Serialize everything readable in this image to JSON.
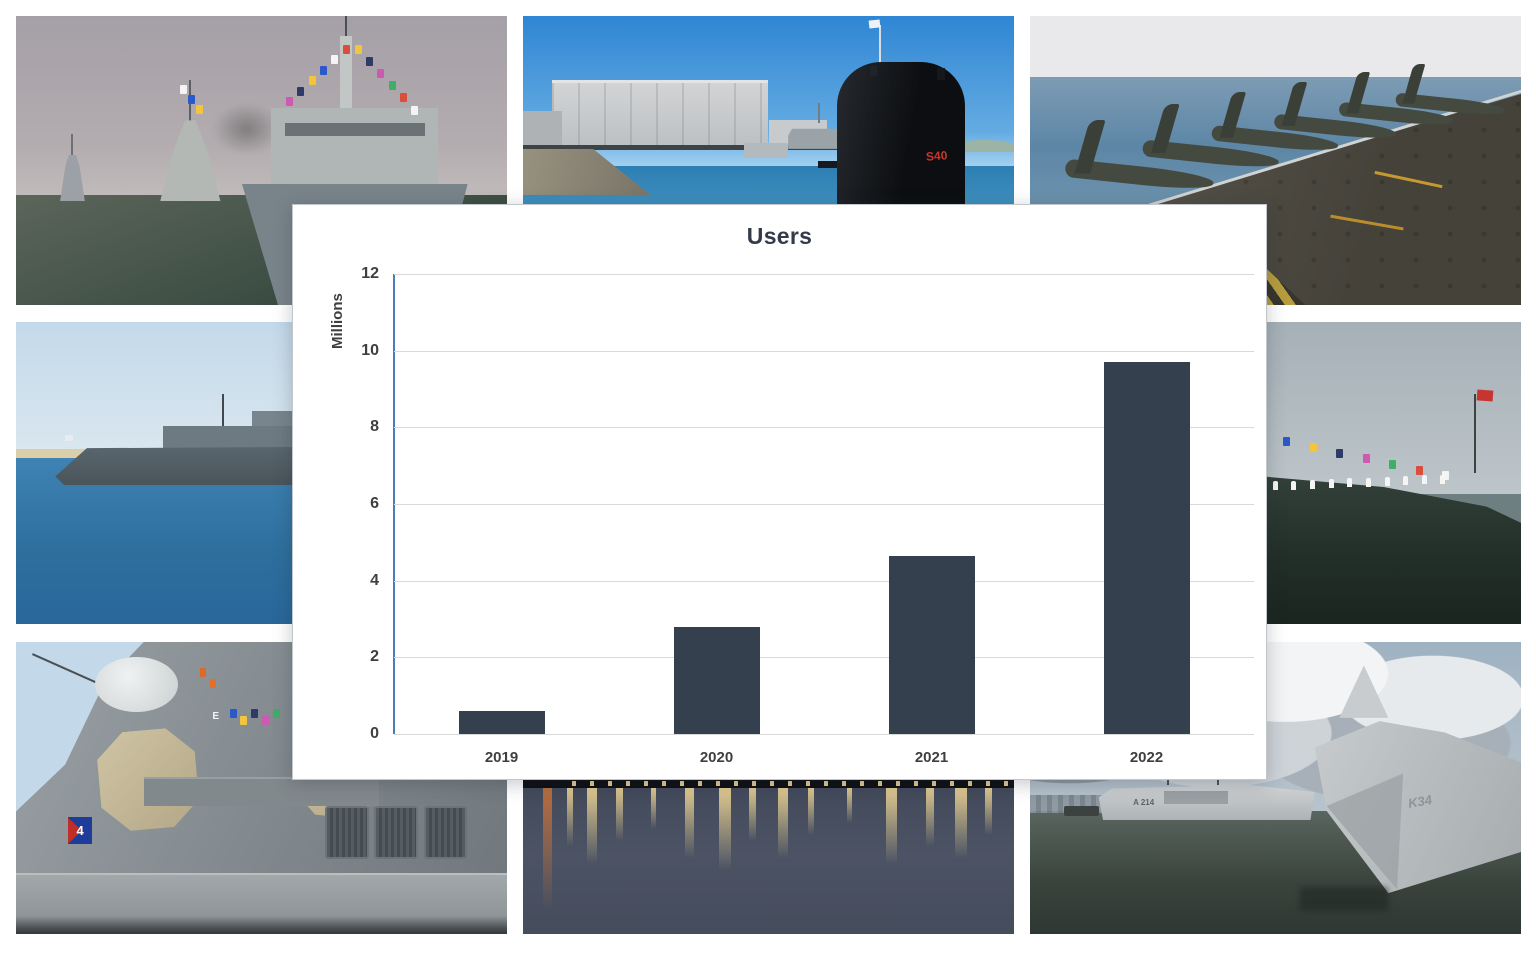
{
  "chart_data": {
    "type": "bar",
    "title": "Users",
    "categories": [
      "2019",
      "2020",
      "2021",
      "2022"
    ],
    "values": [
      0.6,
      2.8,
      4.65,
      9.7
    ],
    "xlabel": "",
    "ylabel": "Millions",
    "ylim": [
      0,
      12
    ],
    "yticks": [
      0,
      2,
      4,
      6,
      8,
      10,
      12
    ],
    "grid": true,
    "legend": "none",
    "bar_color": "#35404f",
    "gridline_color": "#d9d9d9",
    "axis_line_color": "#4a7ebb",
    "title_color": "#333a4a",
    "tick_color": "#3f3f3f",
    "panel_background": "#ffffff"
  },
  "photos": {
    "fleet_formation": {
      "subject": "Grey warships sailing in line formation in haze"
    },
    "submarine_harbor": {
      "subject": "Black submarine moored in a sunny naval harbor",
      "sail_marking": "S40"
    },
    "carrier_jets": {
      "subject": "Fighter jets lined up on an aircraft carrier deck"
    },
    "frigate_at_sea": {
      "subject": "Grey frigate underway along a sandy coastline"
    },
    "warship_bow_sailors": {
      "subject": "Warship bow dressed with signal flags and sailors manning the rails"
    },
    "destroyer_superstructure": {
      "subject": "Destroyer superstructure with radar panels",
      "flag_number": "4",
      "signal_letter": "E"
    },
    "night_harbor": {
      "subject": "Harbor waterfront at dusk with golden light reflections"
    },
    "stealth_corvette": {
      "subject": "Stealth corvette and support ship moored under dramatic clouds",
      "hull_marking": "K34",
      "support_ship_marking": "A 214"
    }
  }
}
